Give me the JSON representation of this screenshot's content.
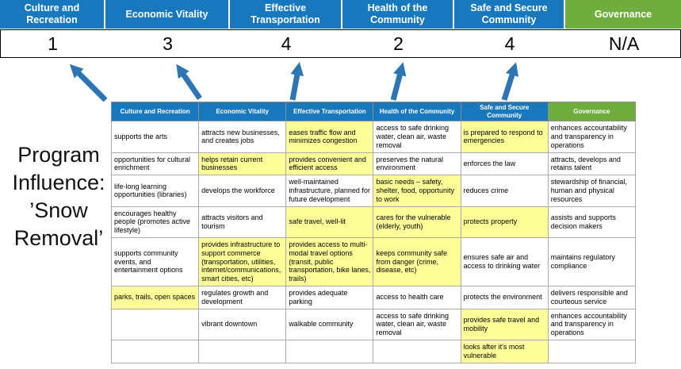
{
  "title": "Program Influence: ’Snow Removal’",
  "banner": {
    "columns": [
      {
        "label": "Culture and Recreation",
        "score": "1",
        "color": "#1878BE"
      },
      {
        "label": "Economic Vitality",
        "score": "3",
        "color": "#1878BE"
      },
      {
        "label": "Effective Transportation",
        "score": "4",
        "color": "#1878BE"
      },
      {
        "label": "Health of the Community",
        "score": "2",
        "color": "#1878BE"
      },
      {
        "label": "Safe and Secure Community",
        "score": "4",
        "color": "#1878BE"
      },
      {
        "label": "Governance",
        "score": "N/A",
        "color": "#6FAD3E"
      }
    ]
  },
  "matrix": {
    "headers": [
      {
        "label": "Culture and Recreation",
        "color": "#1878BE"
      },
      {
        "label": "Economic Vitality",
        "color": "#1878BE"
      },
      {
        "label": "Effective Transportation",
        "color": "#1878BE"
      },
      {
        "label": "Health of the Community",
        "color": "#1878BE"
      },
      {
        "label": "Safe and Secure Community",
        "color": "#1878BE"
      },
      {
        "label": "Governance",
        "color": "#6FAD3E"
      }
    ],
    "rows": [
      [
        {
          "text": "supports the arts",
          "highlight": false
        },
        {
          "text": "attracts new businesses, and creates jobs",
          "highlight": false
        },
        {
          "text": "eases traffic flow and minimizes congestion",
          "highlight": true
        },
        {
          "text": "access to safe drinking water, clean air, waste removal",
          "highlight": false
        },
        {
          "text": "is prepared to respond to emergencies",
          "highlight": true
        },
        {
          "text": "enhances accountability and transparency in operations",
          "highlight": false
        }
      ],
      [
        {
          "text": "opportunities for cultural enrichment",
          "highlight": false
        },
        {
          "text": "helps retain current businesses",
          "highlight": true
        },
        {
          "text": "provides convenient and efficient access",
          "highlight": true
        },
        {
          "text": "preserves the natural environment",
          "highlight": false
        },
        {
          "text": "enforces the law",
          "highlight": false
        },
        {
          "text": "attracts, develops and retains talent",
          "highlight": false
        }
      ],
      [
        {
          "text": "life-long learning opportunities (libraries)",
          "highlight": false
        },
        {
          "text": "develops the workforce",
          "highlight": false
        },
        {
          "text": "well-maintained infrastructure, planned for future development",
          "highlight": false
        },
        {
          "text": "basic needs – safety, shelter, food, opportunity to work",
          "highlight": true
        },
        {
          "text": "reduces crime",
          "highlight": false
        },
        {
          "text": "stewardship of financial, human and physical resources",
          "highlight": false
        }
      ],
      [
        {
          "text": "encourages healthy people (promotes active lifestyle)",
          "highlight": false
        },
        {
          "text": "attracts visitors and tourism",
          "highlight": false
        },
        {
          "text": "safe travel, well-lit",
          "highlight": true
        },
        {
          "text": "cares for the vulnerable (elderly, youth)",
          "highlight": true
        },
        {
          "text": "protects property",
          "highlight": true
        },
        {
          "text": "assists and supports decision makers",
          "highlight": false
        }
      ],
      [
        {
          "text": "supports community events, and entertainment options",
          "highlight": false
        },
        {
          "text": "provides infrastructure to support commerce (transportation, utilities, internet/communications, smart cities, etc)",
          "highlight": true
        },
        {
          "text": "provides access to multi-modal travel options (transit, public transportation, bike lanes, trails)",
          "highlight": true
        },
        {
          "text": "keeps community safe from danger (crime, disease, etc)",
          "highlight": true
        },
        {
          "text": "ensures safe air and access to drinking water",
          "highlight": false
        },
        {
          "text": "maintains regulatory compliance",
          "highlight": false
        }
      ],
      [
        {
          "text": "parks, trails, open spaces",
          "highlight": true
        },
        {
          "text": "regulates growth and development",
          "highlight": false
        },
        {
          "text": "provides adequate parking",
          "highlight": false
        },
        {
          "text": "access to health care",
          "highlight": false
        },
        {
          "text": "protects the environment",
          "highlight": false
        },
        {
          "text": "delivers responsible and courteous service",
          "highlight": false
        }
      ],
      [
        {
          "text": "",
          "highlight": false
        },
        {
          "text": "vibrant downtown",
          "highlight": false
        },
        {
          "text": "walkable community",
          "highlight": false
        },
        {
          "text": "access to safe drinking water, clean air, waste removal",
          "highlight": false
        },
        {
          "text": "provides safe travel and mobility",
          "highlight": true
        },
        {
          "text": "enhances accountability and transparency in operations",
          "highlight": false
        }
      ],
      [
        {
          "text": "",
          "highlight": false
        },
        {
          "text": "",
          "highlight": false
        },
        {
          "text": "",
          "highlight": false
        },
        {
          "text": "",
          "highlight": false
        },
        {
          "text": "looks after it's most vulnerable",
          "highlight": true
        },
        {
          "text": "",
          "highlight": false
        }
      ]
    ]
  },
  "icons": {
    "score_arrow": "up-arrow"
  },
  "colors": {
    "header_blue": "#1878BE",
    "header_green": "#6FAD3E",
    "highlight_yellow": "#FFFF99",
    "arrow_blue": "#2E75B6",
    "grid_line": "#ABABAB",
    "score_border": "#000000"
  }
}
